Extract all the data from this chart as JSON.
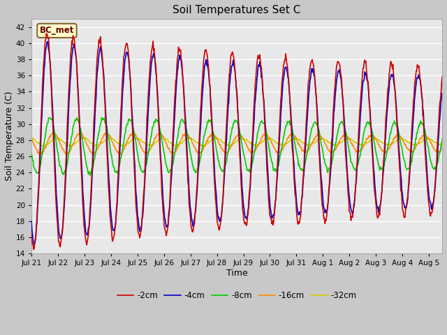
{
  "title": "Soil Temperatures Set C",
  "xlabel": "Time",
  "ylabel": "Soil Temperature (C)",
  "ylim": [
    14,
    43
  ],
  "yticks": [
    14,
    16,
    18,
    20,
    22,
    24,
    26,
    28,
    30,
    32,
    34,
    36,
    38,
    40,
    42
  ],
  "xtick_labels": [
    "Jul 21",
    "Jul 22",
    "Jul 23",
    "Jul 24",
    "Jul 25",
    "Jul 26",
    "Jul 27",
    "Jul 28",
    "Jul 29",
    "Jul 30",
    "Jul 31",
    "Aug 1",
    "Aug 2",
    "Aug 3",
    "Aug 4",
    "Aug 5"
  ],
  "series": {
    "-2cm": {
      "color": "#cc0000",
      "lw": 1.2
    },
    "-4cm": {
      "color": "#0000cc",
      "lw": 1.2
    },
    "-8cm": {
      "color": "#00cc00",
      "lw": 1.2
    },
    "-16cm": {
      "color": "#ff8800",
      "lw": 1.2
    },
    "-32cm": {
      "color": "#cccc00",
      "lw": 1.2
    }
  },
  "annotation": "BC_met",
  "fig_bg": "#c8c8c8",
  "plot_bg": "#e8e8e8",
  "n_days": 15.5,
  "samples_per_day": 48
}
